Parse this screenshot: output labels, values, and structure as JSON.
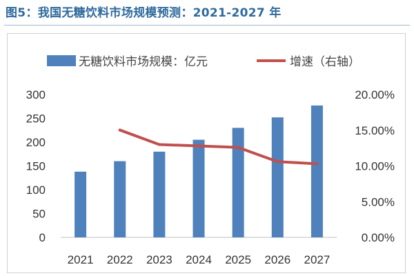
{
  "figure": {
    "title": "图5：我国无糖饮料市场规模预测：2021-2027 年"
  },
  "chart_data": {
    "type": "bar",
    "categories": [
      "2021",
      "2022",
      "2023",
      "2024",
      "2025",
      "2026",
      "2027"
    ],
    "series": [
      {
        "name": "无糖饮料市场规模：亿元",
        "kind": "bar",
        "axis": "left",
        "color": "#4f81bd",
        "values": [
          138,
          160,
          180,
          205,
          230,
          252,
          277
        ]
      },
      {
        "name": "增速（右轴）",
        "kind": "line",
        "axis": "right",
        "color": "#c0504d",
        "values": [
          null,
          0.1503,
          0.13,
          0.128,
          0.126,
          0.106,
          0.103
        ]
      }
    ],
    "y_left": {
      "range": [
        0,
        300
      ],
      "ticks": [
        "0",
        "50",
        "100",
        "150",
        "200",
        "250",
        "300"
      ]
    },
    "y_right": {
      "range": [
        0,
        0.2
      ],
      "ticks": [
        "0.00%",
        "5.00%",
        "10.00%",
        "15.00%",
        "20.00%"
      ]
    },
    "legend_position": "top",
    "grid": false
  }
}
